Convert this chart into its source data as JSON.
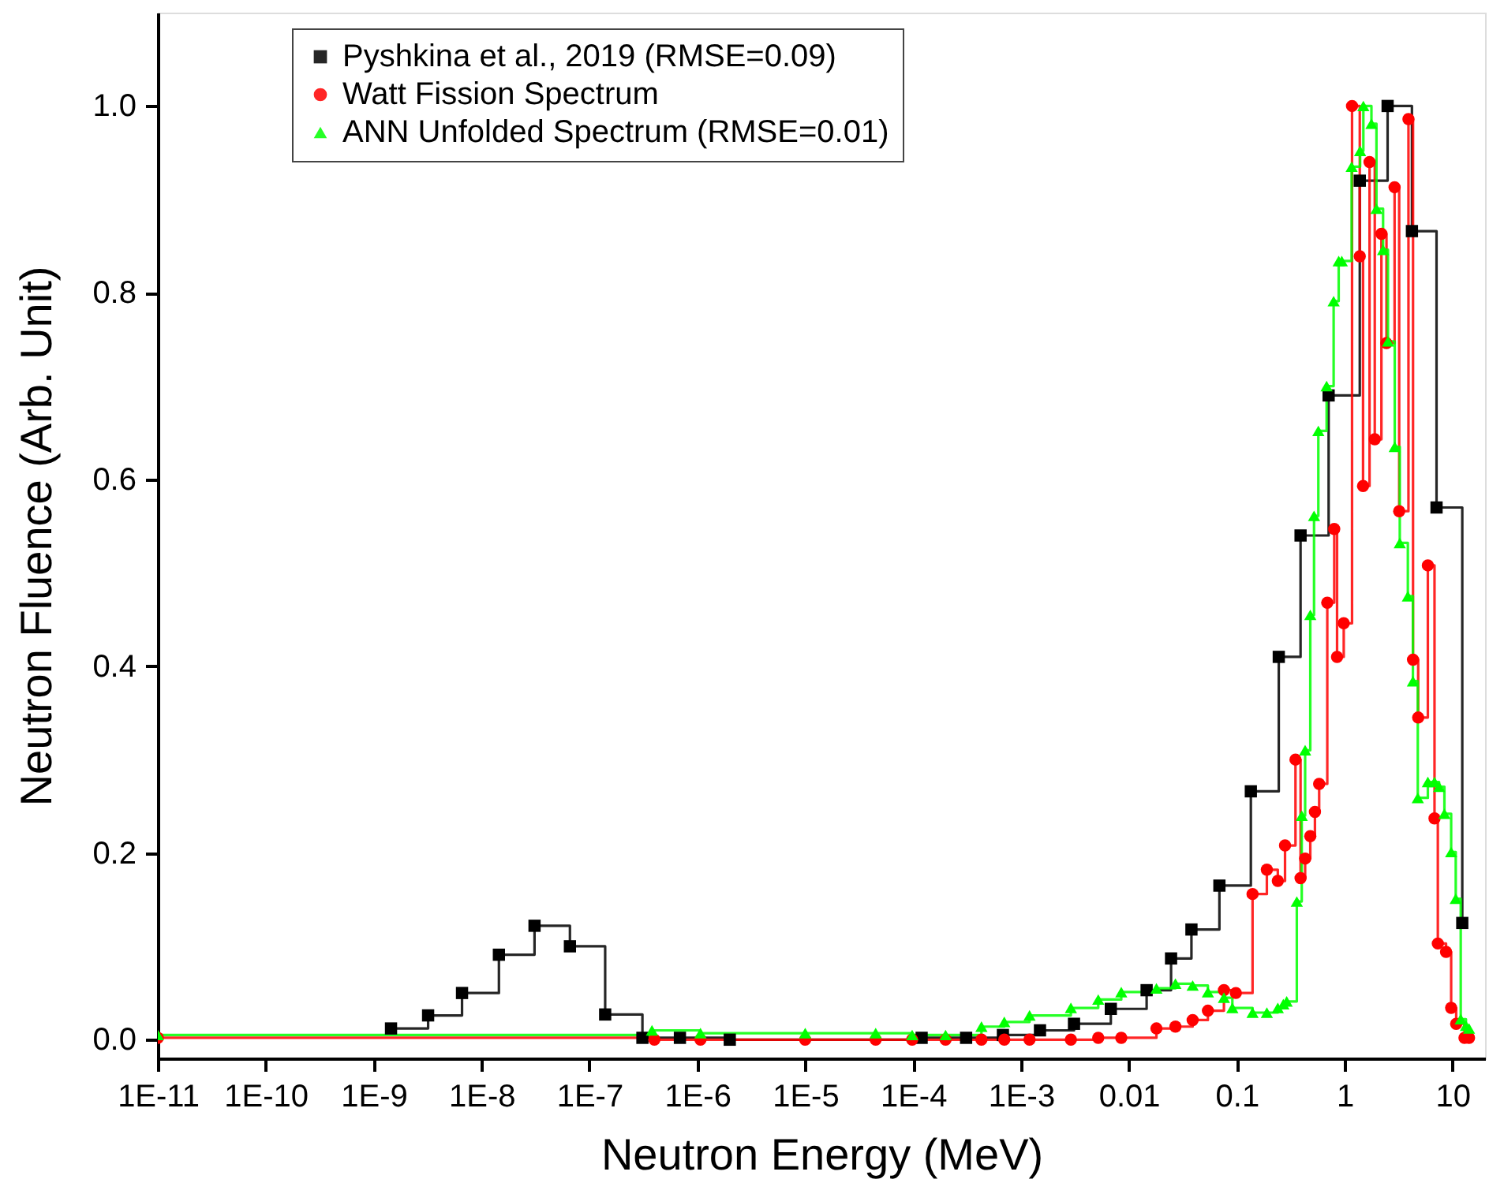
{
  "chart_data": {
    "type": "step",
    "xlabel": "Neutron Energy (MeV)",
    "ylabel": "Neutron Fluence (Arb. Unit)",
    "log": "x",
    "grid": false,
    "legend": "top left",
    "xlim": [
      1e-11,
      20
    ],
    "ylim": [
      -0.02,
      1.1
    ],
    "xticks": [
      {
        "value": 1e-11,
        "label": "1E-11"
      },
      {
        "value": 1e-10,
        "label": "1E-10"
      },
      {
        "value": 1e-09,
        "label": "1E-9"
      },
      {
        "value": 1e-08,
        "label": "1E-8"
      },
      {
        "value": 1e-07,
        "label": "1E-7"
      },
      {
        "value": 1e-06,
        "label": "1E-6"
      },
      {
        "value": 1e-05,
        "label": "1E-5"
      },
      {
        "value": 0.0001,
        "label": "1E-4"
      },
      {
        "value": 0.001,
        "label": "1E-3"
      },
      0.01,
      0.1,
      1,
      10
    ],
    "yticks": [
      {
        "value": 0,
        "label": "0.0"
      },
      {
        "value": 0.2,
        "label": "0.2"
      },
      {
        "value": 0.4,
        "label": "0.4"
      },
      {
        "value": 0.6,
        "label": "0.6"
      },
      {
        "value": 0.8,
        "label": "0.8"
      },
      {
        "value": 1,
        "label": "1.0"
      }
    ],
    "series": [
      {
        "name": "Pyshkina et al., 2019 (RMSE=0.09)",
        "color": "#000000",
        "marker": "square",
        "x": [
          1.45e-09,
          3.2e-09,
          6.6e-09,
          1.45e-08,
          3.1e-08,
          6.6e-08,
          1.4e-07,
          3.1e-07,
          6.9e-07,
          2e-06,
          0.00012,
          0.00031,
          0.00068,
          0.0015,
          0.0031,
          0.0068,
          0.0146,
          0.0246,
          0.038,
          0.069,
          0.135,
          0.245,
          0.39,
          0.71,
          1.38,
          2.5,
          4.2,
          7.1,
          12.3
        ],
        "values": [
          0.012,
          0.026,
          0.05,
          0.091,
          0.122,
          0.1,
          0.027,
          0.002,
          0.002,
          0.0,
          0.002,
          0.002,
          0.005,
          0.01,
          0.017,
          0.033,
          0.053,
          0.087,
          0.118,
          0.165,
          0.266,
          0.41,
          0.54,
          0.69,
          0.92,
          1.0,
          0.866,
          0.57,
          0.125
        ]
      },
      {
        "name": "Watt Fission Spectrum",
        "color": "#ff0000",
        "marker": "circle",
        "x": [
          1e-11,
          4e-07,
          1.07e-06,
          1e-05,
          4.5e-05,
          9.8e-05,
          0.0002,
          0.00043,
          0.0007,
          0.0012,
          0.0029,
          0.0052,
          0.0085,
          0.018,
          0.027,
          0.039,
          0.054,
          0.076,
          0.098,
          0.14,
          0.19,
          0.24,
          0.28,
          0.35,
          0.39,
          0.43,
          0.48,
          0.53,
          0.58,
          0.69,
          0.8,
          0.85,
          0.98,
          1.17,
          1.38,
          1.48,
          1.7,
          1.9,
          2.19,
          2.44,
          2.9,
          3.2,
          3.9,
          4.3,
          4.8,
          5.9,
          6.8,
          7.3,
          8.7,
          9.7,
          10.8,
          12.9,
          14.2
        ],
        "values": [
          0.002,
          0.0,
          0.0,
          0.0,
          0.0,
          0.0,
          0.0,
          0.0,
          0.0,
          0.0,
          0.0,
          0.002,
          0.002,
          0.012,
          0.014,
          0.021,
          0.031,
          0.053,
          0.05,
          0.156,
          0.182,
          0.17,
          0.208,
          0.3,
          0.173,
          0.194,
          0.218,
          0.244,
          0.274,
          0.468,
          0.547,
          0.41,
          0.446,
          1.0,
          0.839,
          0.593,
          0.94,
          0.643,
          0.863,
          0.746,
          0.913,
          0.566,
          0.986,
          0.407,
          0.345,
          0.508,
          0.237,
          0.103,
          0.094,
          0.034,
          0.017,
          0.002,
          0.002
        ]
      },
      {
        "name": "ANN Unfolded Spectrum (RMSE=0.01)",
        "color": "#00ff00",
        "marker": "triangle",
        "x": [
          1e-11,
          3.8e-07,
          1.07e-06,
          1e-05,
          4.5e-05,
          9.8e-05,
          0.0002,
          0.00043,
          0.0007,
          0.0012,
          0.0029,
          0.0052,
          0.0085,
          0.018,
          0.027,
          0.039,
          0.054,
          0.076,
          0.091,
          0.14,
          0.19,
          0.24,
          0.27,
          0.29,
          0.36,
          0.4,
          0.43,
          0.48,
          0.52,
          0.57,
          0.68,
          0.79,
          0.88,
          0.94,
          1.16,
          1.39,
          1.49,
          1.77,
          1.97,
          2.27,
          2.52,
          2.91,
          3.24,
          3.85,
          4.29,
          4.76,
          5.9,
          6.8,
          7.5,
          8.4,
          9.7,
          10.7,
          11.9,
          13.3,
          14.2
        ],
        "values": [
          0.005,
          0.01,
          0.007,
          0.007,
          0.007,
          0.005,
          0.005,
          0.014,
          0.019,
          0.026,
          0.034,
          0.043,
          0.051,
          0.055,
          0.06,
          0.058,
          0.051,
          0.045,
          0.034,
          0.029,
          0.029,
          0.034,
          0.038,
          0.041,
          0.148,
          0.24,
          0.31,
          0.455,
          0.561,
          0.652,
          0.7,
          0.791,
          0.834,
          0.834,
          0.935,
          0.952,
          1.0,
          0.981,
          0.89,
          0.846,
          0.748,
          0.635,
          0.532,
          0.475,
          0.384,
          0.259,
          0.276,
          0.276,
          0.271,
          0.242,
          0.201,
          0.151,
          0.022,
          0.015,
          0.012
        ]
      }
    ]
  }
}
